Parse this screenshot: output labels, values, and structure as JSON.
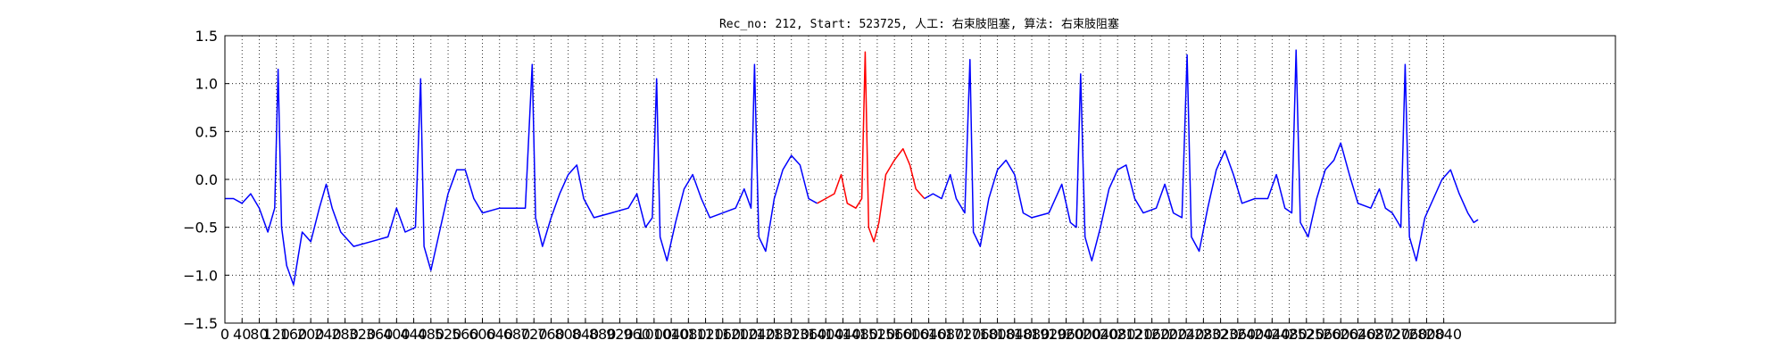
{
  "chart_data": {
    "type": "line",
    "title": "Rec_no: 212, Start: 523725, 人工: 右束肢阻塞, 算法: 右束肢阻塞",
    "xlabel": "",
    "ylabel": "",
    "xlim": [
      0,
      1620
    ],
    "ylim": [
      -1.5,
      1.5
    ],
    "x_ticks": [
      0,
      20,
      40,
      60,
      80,
      100,
      120,
      140,
      160,
      180,
      200,
      220,
      240,
      260,
      280,
      300,
      320,
      340,
      360,
      380,
      400,
      420,
      440,
      460,
      480,
      500,
      520,
      540,
      560,
      580,
      600,
      620,
      640,
      660,
      680,
      700,
      720,
      740,
      760,
      780,
      800,
      820,
      840,
      860,
      880,
      900,
      920,
      940,
      960,
      980,
      1000,
      1020,
      1040,
      1060,
      1080,
      1100,
      1120,
      1140,
      1160,
      1180,
      1200,
      1220,
      1240,
      1260,
      1280,
      1300,
      1320,
      1340,
      1360,
      1380,
      1400,
      1420
    ],
    "x_tick_labels": [
      "0",
      "40",
      "80",
      "120",
      "160",
      "200",
      "240",
      "280",
      "320",
      "360",
      "400",
      "440",
      "480",
      "520",
      "560",
      "600",
      "640",
      "680",
      "720",
      "760",
      "800",
      "840",
      "880",
      "920",
      "960",
      "1000",
      "1040",
      "1080",
      "1120",
      "1160",
      "1200",
      "1240",
      "1280",
      "1320",
      "1360",
      "1400",
      "1440",
      "1480",
      "1520",
      "1560",
      "1600",
      "1640",
      "1680",
      "1720",
      "1760",
      "1800",
      "1840",
      "1880",
      "1920",
      "1960",
      "2000",
      "2040",
      "2080",
      "2120",
      "2160",
      "2200",
      "2240",
      "2280",
      "2320",
      "2360",
      "2400",
      "2440",
      "2480",
      "2520",
      "2560",
      "2600",
      "2640",
      "2680",
      "2720",
      "2760",
      "2800",
      "2840"
    ],
    "y_ticks": [
      -1.5,
      -1.0,
      -0.5,
      0.0,
      0.5,
      1.0,
      1.5
    ],
    "y_tick_labels": [
      "−1.5",
      "−1.0",
      "−0.5",
      "0.0",
      "0.5",
      "1.0",
      "1.5"
    ],
    "grid": true,
    "series": [
      {
        "color": "#0000ff",
        "values": [
          [
            0,
            -0.2
          ],
          [
            10,
            -0.2
          ],
          [
            20,
            -0.25
          ],
          [
            30,
            -0.15
          ],
          [
            40,
            -0.3
          ],
          [
            50,
            -0.55
          ],
          [
            58,
            -0.3
          ],
          [
            62,
            1.15
          ],
          [
            66,
            -0.5
          ],
          [
            72,
            -0.9
          ],
          [
            80,
            -1.1
          ],
          [
            90,
            -0.55
          ],
          [
            100,
            -0.65
          ],
          [
            110,
            -0.3
          ],
          [
            118,
            -0.05
          ],
          [
            125,
            -0.3
          ],
          [
            135,
            -0.55
          ],
          [
            150,
            -0.7
          ],
          [
            170,
            -0.65
          ],
          [
            190,
            -0.6
          ],
          [
            200,
            -0.3
          ],
          [
            210,
            -0.55
          ],
          [
            222,
            -0.5
          ],
          [
            228,
            1.05
          ],
          [
            232,
            -0.7
          ],
          [
            240,
            -0.95
          ],
          [
            250,
            -0.55
          ],
          [
            260,
            -0.15
          ],
          [
            270,
            0.1
          ],
          [
            280,
            0.1
          ],
          [
            290,
            -0.2
          ],
          [
            300,
            -0.35
          ],
          [
            320,
            -0.3
          ],
          [
            340,
            -0.3
          ],
          [
            350,
            -0.3
          ],
          [
            358,
            1.2
          ],
          [
            362,
            -0.4
          ],
          [
            370,
            -0.7
          ],
          [
            380,
            -0.4
          ],
          [
            390,
            -0.15
          ],
          [
            400,
            0.05
          ],
          [
            410,
            0.15
          ],
          [
            418,
            -0.2
          ],
          [
            430,
            -0.4
          ],
          [
            450,
            -0.35
          ],
          [
            470,
            -0.3
          ],
          [
            480,
            -0.15
          ],
          [
            490,
            -0.5
          ],
          [
            498,
            -0.4
          ],
          [
            503,
            1.05
          ],
          [
            507,
            -0.6
          ],
          [
            515,
            -0.85
          ],
          [
            525,
            -0.45
          ],
          [
            535,
            -0.1
          ],
          [
            545,
            0.05
          ],
          [
            555,
            -0.2
          ],
          [
            565,
            -0.4
          ],
          [
            580,
            -0.35
          ],
          [
            595,
            -0.3
          ],
          [
            605,
            -0.1
          ],
          [
            613,
            -0.3
          ],
          [
            617,
            1.2
          ],
          [
            622,
            -0.6
          ],
          [
            630,
            -0.75
          ],
          [
            640,
            -0.2
          ],
          [
            650,
            0.1
          ],
          [
            660,
            0.25
          ],
          [
            670,
            0.15
          ],
          [
            680,
            -0.2
          ],
          [
            690,
            -0.25
          ]
        ]
      },
      {
        "color": "#ff0000",
        "values": [
          [
            690,
            -0.25
          ],
          [
            700,
            -0.2
          ],
          [
            710,
            -0.15
          ],
          [
            718,
            0.05
          ],
          [
            725,
            -0.25
          ],
          [
            735,
            -0.3
          ],
          [
            742,
            -0.2
          ],
          [
            746,
            1.33
          ],
          [
            750,
            -0.5
          ],
          [
            756,
            -0.65
          ],
          [
            762,
            -0.45
          ],
          [
            770,
            0.05
          ],
          [
            780,
            0.2
          ],
          [
            790,
            0.32
          ],
          [
            798,
            0.15
          ],
          [
            805,
            -0.1
          ],
          [
            815,
            -0.2
          ]
        ]
      },
      {
        "color": "#0000ff",
        "values": [
          [
            815,
            -0.2
          ],
          [
            825,
            -0.15
          ],
          [
            835,
            -0.2
          ],
          [
            845,
            0.05
          ],
          [
            852,
            -0.2
          ],
          [
            862,
            -0.35
          ],
          [
            868,
            1.25
          ],
          [
            872,
            -0.55
          ],
          [
            880,
            -0.7
          ],
          [
            890,
            -0.2
          ],
          [
            900,
            0.1
          ],
          [
            910,
            0.2
          ],
          [
            920,
            0.05
          ],
          [
            930,
            -0.35
          ],
          [
            940,
            -0.4
          ],
          [
            960,
            -0.35
          ],
          [
            975,
            -0.05
          ],
          [
            985,
            -0.45
          ],
          [
            992,
            -0.5
          ],
          [
            997,
            1.1
          ],
          [
            1002,
            -0.6
          ],
          [
            1010,
            -0.85
          ],
          [
            1020,
            -0.5
          ],
          [
            1030,
            -0.1
          ],
          [
            1040,
            0.1
          ],
          [
            1050,
            0.15
          ],
          [
            1060,
            -0.2
          ],
          [
            1070,
            -0.35
          ],
          [
            1085,
            -0.3
          ],
          [
            1095,
            -0.05
          ],
          [
            1105,
            -0.35
          ],
          [
            1115,
            -0.4
          ],
          [
            1121,
            1.3
          ],
          [
            1126,
            -0.6
          ],
          [
            1135,
            -0.75
          ],
          [
            1145,
            -0.3
          ],
          [
            1155,
            0.1
          ],
          [
            1165,
            0.3
          ],
          [
            1175,
            0.05
          ],
          [
            1185,
            -0.25
          ],
          [
            1200,
            -0.2
          ],
          [
            1215,
            -0.2
          ],
          [
            1225,
            0.05
          ],
          [
            1235,
            -0.3
          ],
          [
            1243,
            -0.35
          ],
          [
            1248,
            1.35
          ],
          [
            1253,
            -0.45
          ],
          [
            1262,
            -0.6
          ],
          [
            1272,
            -0.2
          ],
          [
            1282,
            0.1
          ],
          [
            1292,
            0.2
          ],
          [
            1300,
            0.38
          ],
          [
            1310,
            0.05
          ],
          [
            1320,
            -0.25
          ],
          [
            1335,
            -0.3
          ],
          [
            1345,
            -0.1
          ],
          [
            1352,
            -0.3
          ],
          [
            1360,
            -0.35
          ],
          [
            1370,
            -0.5
          ],
          [
            1375,
            1.2
          ],
          [
            1380,
            -0.6
          ],
          [
            1388,
            -0.85
          ],
          [
            1398,
            -0.4
          ],
          [
            1408,
            -0.2
          ],
          [
            1418,
            0.0
          ],
          [
            1428,
            0.1
          ],
          [
            1438,
            -0.15
          ],
          [
            1448,
            -0.35
          ],
          [
            1455,
            -0.45
          ],
          [
            1460,
            -0.42
          ]
        ]
      }
    ]
  }
}
